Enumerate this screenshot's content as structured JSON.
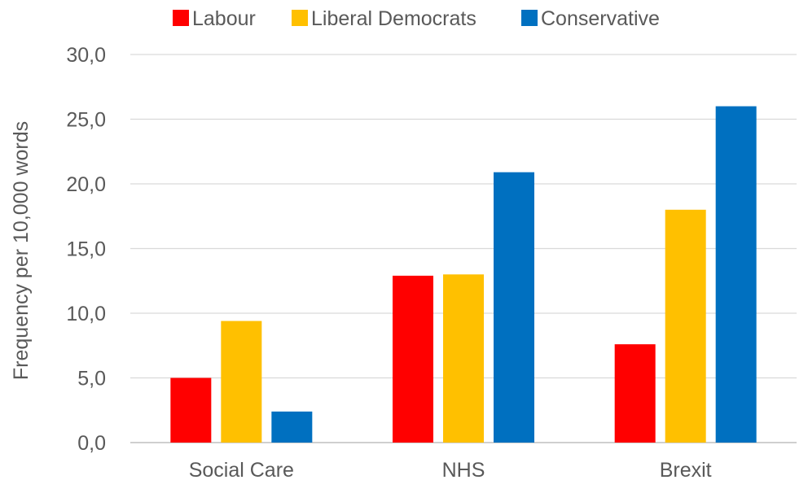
{
  "chart_data": {
    "type": "bar",
    "title": "",
    "xlabel": "",
    "ylabel": "Frequency per 10,000 words",
    "categories": [
      "Social Care",
      "NHS",
      "Brexit"
    ],
    "series": [
      {
        "name": "Labour",
        "color": "#ff0000",
        "values": [
          5.0,
          12.9,
          7.6
        ]
      },
      {
        "name": "Liberal Democrats",
        "color": "#ffc000",
        "values": [
          9.4,
          13.0,
          18.0
        ]
      },
      {
        "name": "Conservative",
        "color": "#0070c0",
        "values": [
          2.4,
          20.9,
          26.0
        ]
      }
    ],
    "ylim": [
      0,
      30
    ],
    "yticks": [
      "0,0",
      "5,0",
      "10,0",
      "15,0",
      "20,0",
      "25,0",
      "30,0"
    ],
    "ytick_values": [
      0,
      5,
      10,
      15,
      20,
      25,
      30
    ],
    "grid": true,
    "legend": "top-center"
  }
}
